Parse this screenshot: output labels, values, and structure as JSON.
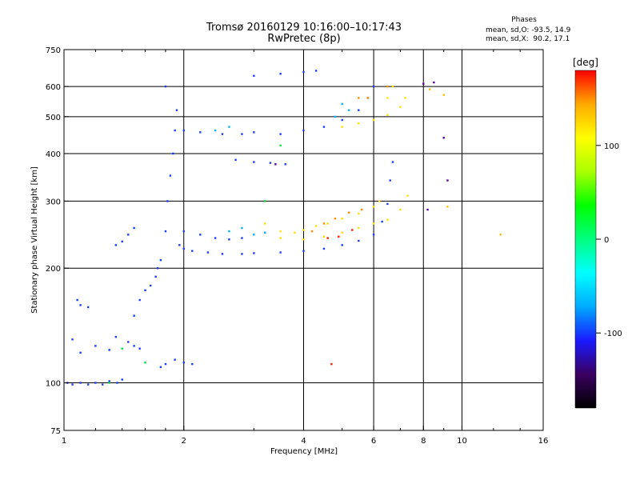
{
  "header": {
    "title_line1": "Tromsø 20160129 10:16:00–10:17:43",
    "title_line2": "RwPretec (8p)",
    "phases_label": "Phases",
    "stat_o": "mean, sd,O: -93.5, 14.9",
    "stat_x": "mean, sd,X:  90.2, 17.1"
  },
  "colors": {
    "grid": "#000000",
    "colorbar": [
      "#000000",
      "#3a0060",
      "#1a1aff",
      "#00aaff",
      "#00ffff",
      "#00ff80",
      "#00ff00",
      "#aaff00",
      "#ffff00",
      "#ffaa00",
      "#ff0000"
    ]
  },
  "chart_data": {
    "type": "scatter",
    "title": "Tromsø 20160129 10:16:00–10:17:43",
    "subtitle": "RwPretec (8p)",
    "xlabel": "Frequency [MHz]",
    "ylabel": "Stationary phase Virtual Height [km]",
    "x_scale": "log",
    "y_scale": "log",
    "xlim": [
      1,
      16
    ],
    "ylim": [
      75,
      750
    ],
    "x_ticks": [
      1,
      2,
      4,
      6,
      8,
      10,
      16
    ],
    "y_ticks": [
      75,
      100,
      200,
      300,
      400,
      500,
      600,
      750
    ],
    "x_gridlines": [
      2,
      4,
      6,
      8,
      10
    ],
    "y_gridlines": [
      100,
      200,
      300,
      400,
      500,
      600
    ],
    "grid": true,
    "colorbar": {
      "label": "[deg]",
      "min": -180,
      "max": 180,
      "ticks": [
        100,
        0,
        -100
      ]
    },
    "series": [
      {
        "color": "#1a3cff",
        "points": [
          [
            1.02,
            100
          ],
          [
            1.05,
            99
          ],
          [
            1.1,
            100
          ],
          [
            1.15,
            99
          ],
          [
            1.2,
            100
          ],
          [
            1.25,
            99
          ],
          [
            1.3,
            101
          ],
          [
            1.36,
            100
          ],
          [
            1.4,
            102
          ],
          [
            1.05,
            130
          ],
          [
            1.1,
            120
          ],
          [
            1.2,
            125
          ],
          [
            1.3,
            122
          ],
          [
            1.35,
            132
          ],
          [
            1.45,
            128
          ],
          [
            1.5,
            125
          ],
          [
            1.55,
            123
          ],
          [
            1.08,
            165
          ],
          [
            1.1,
            160
          ],
          [
            1.15,
            158
          ],
          [
            1.35,
            230
          ],
          [
            1.4,
            235
          ],
          [
            1.45,
            245
          ],
          [
            1.5,
            255
          ],
          [
            1.5,
            150
          ],
          [
            1.55,
            165
          ],
          [
            1.6,
            175
          ],
          [
            1.65,
            180
          ],
          [
            1.7,
            190
          ],
          [
            1.72,
            200
          ],
          [
            1.75,
            210
          ],
          [
            1.8,
            250
          ],
          [
            1.82,
            300
          ],
          [
            1.85,
            350
          ],
          [
            1.88,
            400
          ],
          [
            1.9,
            460
          ],
          [
            1.92,
            520
          ],
          [
            1.8,
            600
          ],
          [
            1.75,
            110
          ],
          [
            1.8,
            112
          ],
          [
            1.9,
            115
          ],
          [
            2.0,
            113
          ],
          [
            2.1,
            112
          ],
          [
            1.95,
            230
          ],
          [
            2.0,
            225
          ],
          [
            2.1,
            222
          ],
          [
            2.3,
            220
          ],
          [
            2.5,
            218
          ],
          [
            2.8,
            218
          ],
          [
            3.0,
            219
          ],
          [
            3.5,
            220
          ],
          [
            4.0,
            222
          ],
          [
            4.5,
            225
          ],
          [
            5.0,
            230
          ],
          [
            5.5,
            236
          ],
          [
            6.0,
            245
          ],
          [
            6.3,
            265
          ],
          [
            6.5,
            295
          ],
          [
            6.6,
            340
          ],
          [
            6.7,
            380
          ],
          [
            2.0,
            250
          ],
          [
            2.2,
            245
          ],
          [
            2.4,
            240
          ],
          [
            2.6,
            238
          ],
          [
            2.8,
            240
          ],
          [
            2.0,
            460
          ],
          [
            2.2,
            455
          ],
          [
            2.5,
            450
          ],
          [
            2.8,
            450
          ],
          [
            3.0,
            455
          ],
          [
            3.5,
            450
          ],
          [
            4.0,
            460
          ],
          [
            4.5,
            470
          ],
          [
            5.0,
            490
          ],
          [
            5.5,
            520
          ],
          [
            5.8,
            560
          ],
          [
            6.0,
            600
          ],
          [
            3.0,
            640
          ],
          [
            3.5,
            648
          ],
          [
            4.0,
            655
          ],
          [
            4.3,
            660
          ],
          [
            2.7,
            385
          ],
          [
            3.0,
            380
          ],
          [
            3.3,
            378
          ],
          [
            3.6,
            375
          ]
        ]
      },
      {
        "color": "#00b4ff",
        "points": [
          [
            2.6,
            250
          ],
          [
            2.8,
            255
          ],
          [
            3.0,
            245
          ],
          [
            3.2,
            248
          ],
          [
            2.4,
            460
          ],
          [
            2.6,
            470
          ],
          [
            4.8,
            500
          ],
          [
            5.0,
            540
          ],
          [
            5.2,
            520
          ]
        ]
      },
      {
        "color": "#ffe000",
        "points": [
          [
            3.2,
            262
          ],
          [
            3.5,
            250
          ],
          [
            3.8,
            248
          ],
          [
            4.0,
            252
          ],
          [
            4.3,
            258
          ],
          [
            4.6,
            262
          ],
          [
            5.0,
            270
          ],
          [
            5.5,
            278
          ],
          [
            6.0,
            290
          ],
          [
            6.2,
            300
          ],
          [
            3.5,
            240
          ],
          [
            4.0,
            238
          ],
          [
            4.5,
            242
          ],
          [
            5.0,
            248
          ],
          [
            5.5,
            255
          ],
          [
            6.0,
            262
          ],
          [
            6.5,
            268
          ],
          [
            7.0,
            285
          ],
          [
            7.3,
            310
          ],
          [
            5.0,
            470
          ],
          [
            5.5,
            480
          ],
          [
            6.0,
            490
          ],
          [
            6.5,
            505
          ],
          [
            7.0,
            530
          ],
          [
            7.2,
            560
          ],
          [
            6.5,
            560
          ],
          [
            6.7,
            600
          ]
        ]
      },
      {
        "color": "#ff8c00",
        "points": [
          [
            4.2,
            250
          ],
          [
            4.5,
            262
          ],
          [
            4.8,
            270
          ],
          [
            5.2,
            280
          ],
          [
            5.6,
            285
          ],
          [
            6.5,
            600
          ],
          [
            5.8,
            560
          ],
          [
            5.5,
            560
          ]
        ]
      },
      {
        "color": "#ff1e00",
        "points": [
          [
            4.6,
            240
          ],
          [
            4.9,
            242
          ],
          [
            5.3,
            252
          ],
          [
            4.7,
            112
          ]
        ]
      },
      {
        "color": "#00e040",
        "points": [
          [
            1.3,
            100
          ],
          [
            1.4,
            123
          ],
          [
            1.6,
            113
          ],
          [
            3.2,
            300
          ],
          [
            3.5,
            420
          ]
        ]
      },
      {
        "color": "#5a00a0",
        "points": [
          [
            8.0,
            610
          ],
          [
            8.5,
            615
          ],
          [
            9.0,
            440
          ],
          [
            9.2,
            340
          ],
          [
            8.2,
            285
          ],
          [
            3.4,
            375
          ]
        ]
      },
      {
        "color": "#ffc000",
        "points": [
          [
            8.3,
            590
          ],
          [
            9.0,
            570
          ],
          [
            9.2,
            290
          ],
          [
            12.5,
            245
          ]
        ]
      }
    ]
  }
}
